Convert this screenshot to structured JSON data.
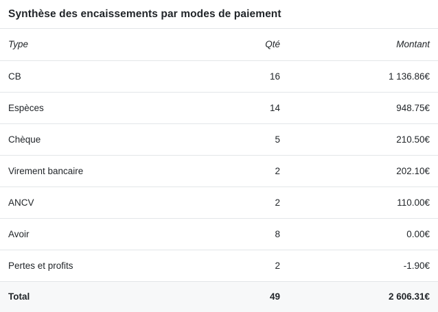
{
  "title": "Synthèse des encaissements par modes de paiement",
  "table": {
    "columns": [
      {
        "key": "type",
        "label": "Type",
        "align": "left"
      },
      {
        "key": "qty",
        "label": "Qté",
        "align": "right"
      },
      {
        "key": "amount",
        "label": "Montant",
        "align": "right"
      }
    ],
    "rows": [
      {
        "type": "CB",
        "qty": "16",
        "amount": "1 136.86€"
      },
      {
        "type": "Espèces",
        "qty": "14",
        "amount": "948.75€"
      },
      {
        "type": "Chèque",
        "qty": "5",
        "amount": "210.50€"
      },
      {
        "type": "Virement bancaire",
        "qty": "2",
        "amount": "202.10€"
      },
      {
        "type": "ANCV",
        "qty": "2",
        "amount": "110.00€"
      },
      {
        "type": "Avoir",
        "qty": "8",
        "amount": "0.00€"
      },
      {
        "type": "Pertes et profits",
        "qty": "2",
        "amount": "-1.90€"
      }
    ],
    "total": {
      "type": "Total",
      "qty": "49",
      "amount": "2 606.31€"
    }
  },
  "colors": {
    "text": "#212529",
    "border": "#e2e5e8",
    "total_background": "#f7f8f9",
    "background": "#ffffff"
  }
}
